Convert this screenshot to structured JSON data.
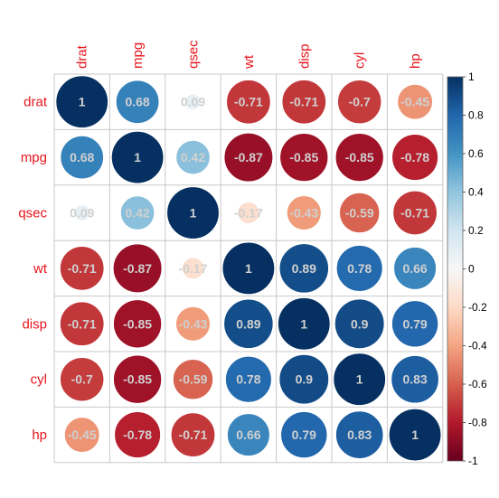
{
  "chart_data": {
    "type": "heatmap",
    "variables": [
      "drat",
      "mpg",
      "qsec",
      "wt",
      "disp",
      "cyl",
      "hp"
    ],
    "matrix": [
      [
        1,
        0.68,
        0.09,
        -0.71,
        -0.71,
        -0.7,
        -0.45
      ],
      [
        0.68,
        1,
        0.42,
        -0.87,
        -0.85,
        -0.85,
        -0.78
      ],
      [
        0.09,
        0.42,
        1,
        -0.17,
        -0.43,
        -0.59,
        -0.71
      ],
      [
        -0.71,
        -0.87,
        -0.17,
        1,
        0.89,
        0.78,
        0.66
      ],
      [
        -0.71,
        -0.85,
        -0.43,
        0.89,
        1,
        0.9,
        0.79
      ],
      [
        -0.7,
        -0.85,
        -0.59,
        0.78,
        0.9,
        1,
        0.83
      ],
      [
        -0.45,
        -0.78,
        -0.71,
        0.66,
        0.79,
        0.83,
        1
      ]
    ],
    "labels": [
      [
        "1",
        "0.68",
        "0.09",
        "-0.71",
        "-0.71",
        "-0.7",
        "-0.45"
      ],
      [
        "0.68",
        "1",
        "0.42",
        "-0.87",
        "-0.85",
        "-0.85",
        "-0.78"
      ],
      [
        "0.09",
        "0.42",
        "1",
        "-0.17",
        "-0.43",
        "-0.59",
        "-0.71"
      ],
      [
        "-0.71",
        "-0.87",
        "-0.17",
        "1",
        "0.89",
        "0.78",
        "0.66"
      ],
      [
        "-0.71",
        "-0.85",
        "-0.43",
        "0.89",
        "1",
        "0.9",
        "0.79"
      ],
      [
        "-0.7",
        "-0.85",
        "-0.59",
        "0.78",
        "0.9",
        "1",
        "0.83"
      ],
      [
        "-0.45",
        "-0.78",
        "-0.71",
        "0.66",
        "0.79",
        "0.83",
        "1"
      ]
    ],
    "glyph": "circle",
    "color_scale": {
      "range": [
        -1,
        1
      ],
      "ticks": [
        -1,
        -0.8,
        -0.6,
        -0.4,
        -0.2,
        0,
        0.2,
        0.4,
        0.6,
        0.8,
        1
      ],
      "tick_labels": [
        "-1",
        "-0.8",
        "-0.6",
        "-0.4",
        "-0.2",
        "0",
        "0.2",
        "0.4",
        "0.6",
        "0.8",
        "1"
      ],
      "stops": [
        "#67001f",
        "#b2182b",
        "#d6604d",
        "#f4a582",
        "#fddbc7",
        "#f7f7f7",
        "#d1e5f0",
        "#92c5de",
        "#4393c3",
        "#2166ac",
        "#053061"
      ]
    },
    "label_color": "#e8141c",
    "value_text_color": "#d0d0d0",
    "grid": true,
    "legend_position": "right"
  }
}
